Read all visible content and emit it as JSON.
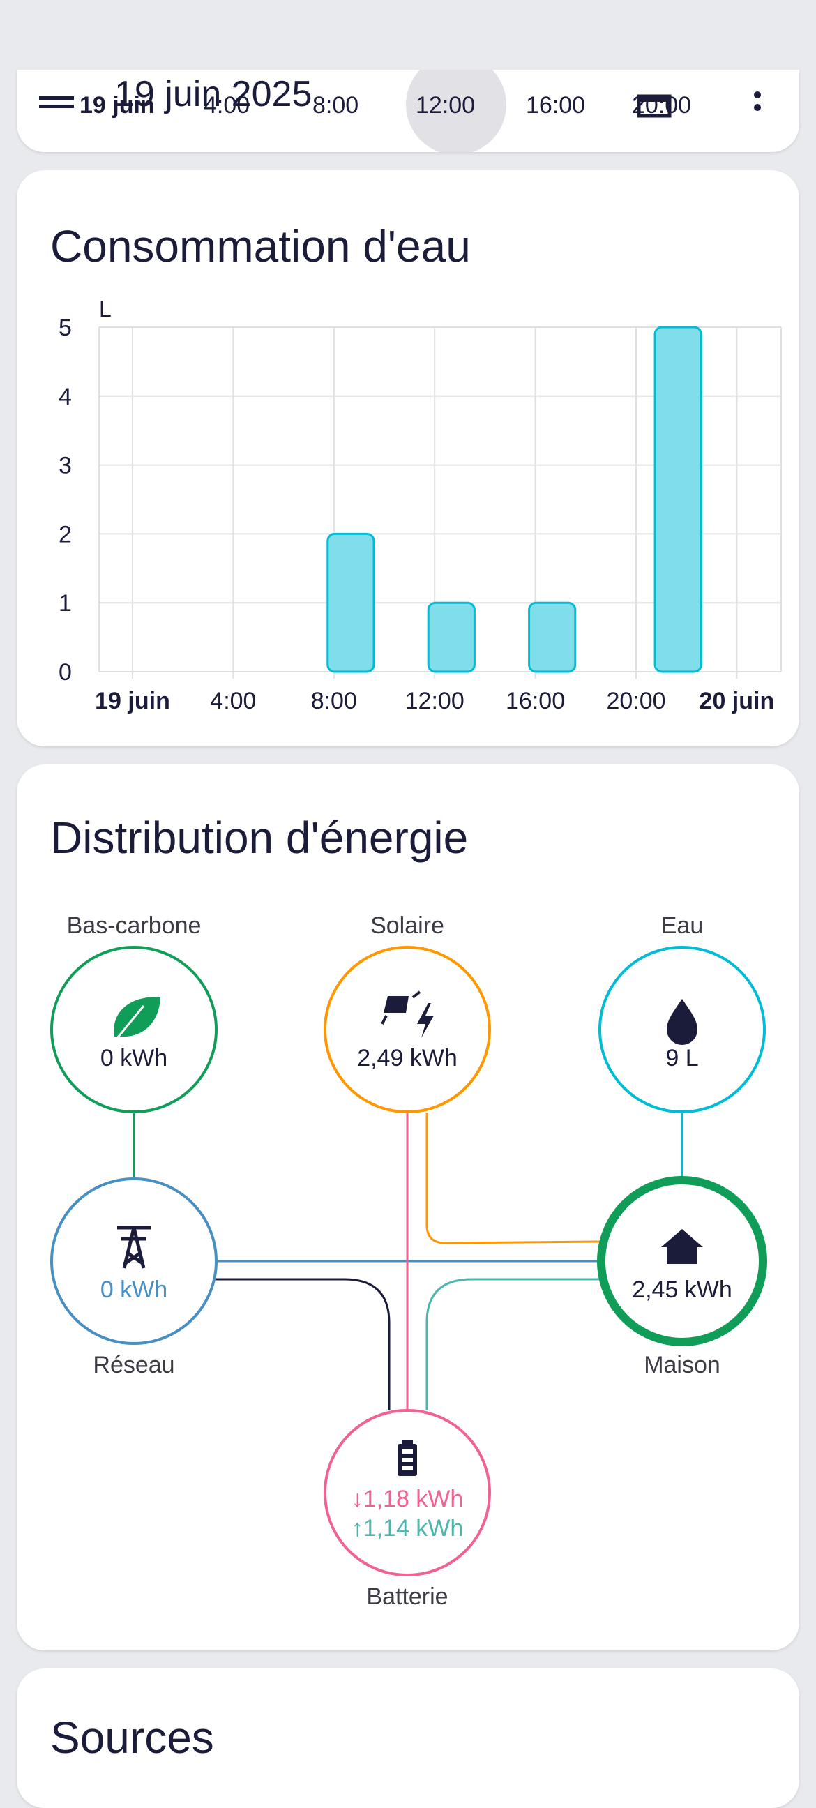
{
  "top_card": {
    "overlap_title": "19 juin 2025",
    "tick_labels": [
      "19 juin",
      "4:00",
      "8:00",
      "12:00",
      "16:00",
      "20:00"
    ]
  },
  "water_card": {
    "title": "Consommation d'eau"
  },
  "chart_data": {
    "type": "bar",
    "title": "Consommation d'eau",
    "xlabel": "",
    "ylabel": "L",
    "y_ticks": [
      "0",
      "1",
      "2",
      "3",
      "4",
      "5"
    ],
    "ylim": [
      0,
      5
    ],
    "x_tick_labels": [
      "19 juin",
      "4:00",
      "8:00",
      "12:00",
      "16:00",
      "20:00",
      "20 juin"
    ],
    "x_tick_hours": [
      0,
      4,
      8,
      12,
      16,
      20,
      24
    ],
    "bars": [
      {
        "start_hour": 8,
        "end_hour": 10,
        "value": 2
      },
      {
        "start_hour": 12,
        "end_hour": 14,
        "value": 1
      },
      {
        "start_hour": 16,
        "end_hour": 18,
        "value": 1
      },
      {
        "start_hour": 21,
        "end_hour": 23,
        "value": 5
      }
    ],
    "grid": true,
    "bar_color": "#80deea",
    "bar_border_color": "#00bcd4"
  },
  "energy_card": {
    "title": "Distribution d'énergie",
    "nodes": {
      "low_carbon": {
        "label": "Bas-carbone",
        "value": "0 kWh",
        "color": "#0f9d58"
      },
      "solar": {
        "label": "Solaire",
        "value": "2,49 kWh",
        "color": "#ff9800"
      },
      "water": {
        "label": "Eau",
        "value": "9 L",
        "color": "#00bcd4"
      },
      "grid": {
        "label": "Réseau",
        "value": "0 kWh",
        "color": "#488fc2"
      },
      "home": {
        "label": "Maison",
        "value": "2,45 kWh",
        "color": "#0f9d58"
      },
      "battery": {
        "label": "Batterie",
        "value_in": "↓1,18 kWh",
        "value_out": "↑1,14 kWh",
        "color_in": "#f06292",
        "color_out": "#4db6ac",
        "color": "#f06292"
      }
    }
  },
  "sources_card": {
    "title": "Sources"
  }
}
